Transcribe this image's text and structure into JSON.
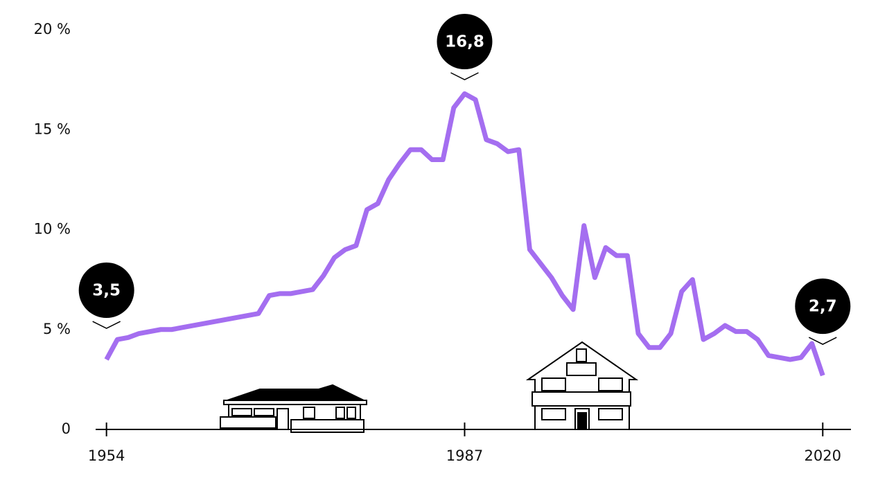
{
  "chart_data": {
    "type": "line",
    "x": [
      1954,
      1955,
      1956,
      1957,
      1958,
      1959,
      1960,
      1961,
      1962,
      1963,
      1964,
      1965,
      1966,
      1967,
      1968,
      1969,
      1970,
      1971,
      1972,
      1973,
      1974,
      1975,
      1976,
      1977,
      1978,
      1979,
      1980,
      1981,
      1982,
      1983,
      1984,
      1985,
      1986,
      1987,
      1988,
      1989,
      1990,
      1991,
      1992,
      1993,
      1994,
      1995,
      1996,
      1997,
      1998,
      1999,
      2000,
      2001,
      2002,
      2003,
      2004,
      2005,
      2006,
      2007,
      2008,
      2009,
      2010,
      2011,
      2012,
      2013,
      2014,
      2015,
      2016,
      2017,
      2018,
      2019,
      2020
    ],
    "series": [
      {
        "color": "#a46ef0",
        "values": [
          3.5,
          4.5,
          4.6,
          4.8,
          4.9,
          5.0,
          5.0,
          5.1,
          5.2,
          5.3,
          5.4,
          5.5,
          5.6,
          5.7,
          5.8,
          6.7,
          6.8,
          6.8,
          6.9,
          7.0,
          7.7,
          8.6,
          9.0,
          9.2,
          11.0,
          11.3,
          12.5,
          13.3,
          14.0,
          14.0,
          13.5,
          13.5,
          16.1,
          16.8,
          16.5,
          14.5,
          14.3,
          13.9,
          14.0,
          9.0,
          8.3,
          7.6,
          6.7,
          6.0,
          10.2,
          7.6,
          9.1,
          8.7,
          8.7,
          4.8,
          4.1,
          4.1,
          4.8,
          6.9,
          7.5,
          4.5,
          4.8,
          5.2,
          4.9,
          4.9,
          4.5,
          3.7,
          3.6,
          3.5,
          3.6,
          4.3,
          2.7
        ]
      }
    ],
    "xlim": [
      1953,
      2022.6
    ],
    "xticks": [
      1954,
      1987,
      2020
    ],
    "ylim": [
      0,
      20
    ],
    "yticks": [
      0,
      {
        "value": 5,
        "label": "5 %"
      },
      {
        "value": 10,
        "label": "10 %"
      },
      {
        "value": 15,
        "label": "15 %"
      },
      {
        "value": 20,
        "label": "20 %"
      }
    ],
    "grid": false,
    "annotations": [
      {
        "x": 1954,
        "y": 3.5,
        "label": "3,5"
      },
      {
        "x": 1987,
        "y": 16.8,
        "label": "16,8"
      },
      {
        "x": 2020,
        "y": 2.7,
        "label": "2,7"
      }
    ]
  }
}
